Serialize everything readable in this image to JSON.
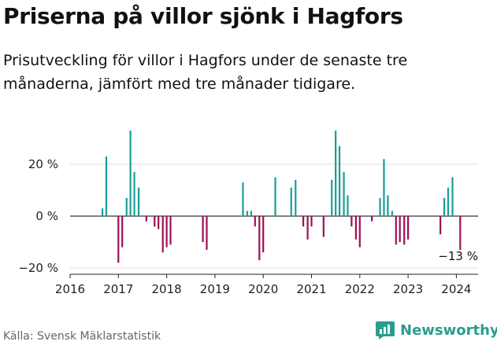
{
  "header": {
    "title": "Priserna på villor sjönk i Hagfors",
    "subtitle": "Prisutveckling för villor i Hagfors under de senaste tre månaderna, jämfört med tre månader tidigare."
  },
  "footer": {
    "source": "Källa: Svensk Mäklarstatistik",
    "brand": "Newsworthy"
  },
  "colors": {
    "positive": "#1a9e96",
    "negative": "#9e1055",
    "grid": "#dddddd",
    "axis": "#222222",
    "brand": "#2a9d8f"
  },
  "chart_data": {
    "type": "bar",
    "title": "Priserna på villor sjönk i Hagfors",
    "xlabel": "",
    "ylabel": "",
    "ylim": [
      -22,
      36
    ],
    "yticks": [
      20,
      0,
      -20
    ],
    "ytick_labels": [
      "20 %",
      "0 %",
      "−20 %"
    ],
    "xticks": [
      2016,
      2017,
      2018,
      2019,
      2020,
      2021,
      2022,
      2023,
      2024
    ],
    "xtick_labels": [
      "2016",
      "2017",
      "2018",
      "2019",
      "2020",
      "2021",
      "2022",
      "2023",
      "2024"
    ],
    "xlim": [
      2016,
      2024.6
    ],
    "last_value_label": "−13 %",
    "series": [
      {
        "name": "Prisutveckling",
        "points": [
          {
            "t": 2016.67,
            "v": 3
          },
          {
            "t": 2016.75,
            "v": 23
          },
          {
            "t": 2017.0,
            "v": -18
          },
          {
            "t": 2017.08,
            "v": -12
          },
          {
            "t": 2017.17,
            "v": 7
          },
          {
            "t": 2017.25,
            "v": 33
          },
          {
            "t": 2017.33,
            "v": 17
          },
          {
            "t": 2017.42,
            "v": 11
          },
          {
            "t": 2017.58,
            "v": -2
          },
          {
            "t": 2017.75,
            "v": -4
          },
          {
            "t": 2017.83,
            "v": -5
          },
          {
            "t": 2017.92,
            "v": -14
          },
          {
            "t": 2018.0,
            "v": -12
          },
          {
            "t": 2018.08,
            "v": -11
          },
          {
            "t": 2018.75,
            "v": -10
          },
          {
            "t": 2018.83,
            "v": -13
          },
          {
            "t": 2019.58,
            "v": 13
          },
          {
            "t": 2019.67,
            "v": 2
          },
          {
            "t": 2019.75,
            "v": 2
          },
          {
            "t": 2019.83,
            "v": -4
          },
          {
            "t": 2019.92,
            "v": -17
          },
          {
            "t": 2020.0,
            "v": -14
          },
          {
            "t": 2020.25,
            "v": 15
          },
          {
            "t": 2020.58,
            "v": 11
          },
          {
            "t": 2020.67,
            "v": 14
          },
          {
            "t": 2020.83,
            "v": -4
          },
          {
            "t": 2020.92,
            "v": -9
          },
          {
            "t": 2021.0,
            "v": -4
          },
          {
            "t": 2021.25,
            "v": -8
          },
          {
            "t": 2021.42,
            "v": 14
          },
          {
            "t": 2021.5,
            "v": 33
          },
          {
            "t": 2021.58,
            "v": 27
          },
          {
            "t": 2021.67,
            "v": 17
          },
          {
            "t": 2021.75,
            "v": 8
          },
          {
            "t": 2021.83,
            "v": -4
          },
          {
            "t": 2021.92,
            "v": -9
          },
          {
            "t": 2022.0,
            "v": -12
          },
          {
            "t": 2022.25,
            "v": -2
          },
          {
            "t": 2022.42,
            "v": 7
          },
          {
            "t": 2022.5,
            "v": 22
          },
          {
            "t": 2022.58,
            "v": 8
          },
          {
            "t": 2022.67,
            "v": 2
          },
          {
            "t": 2022.75,
            "v": -11
          },
          {
            "t": 2022.83,
            "v": -10
          },
          {
            "t": 2022.92,
            "v": -11
          },
          {
            "t": 2023.0,
            "v": -9
          },
          {
            "t": 2023.67,
            "v": -7
          },
          {
            "t": 2023.75,
            "v": 7
          },
          {
            "t": 2023.83,
            "v": 11
          },
          {
            "t": 2023.92,
            "v": 15
          },
          {
            "t": 2024.08,
            "v": -13
          }
        ]
      }
    ]
  }
}
